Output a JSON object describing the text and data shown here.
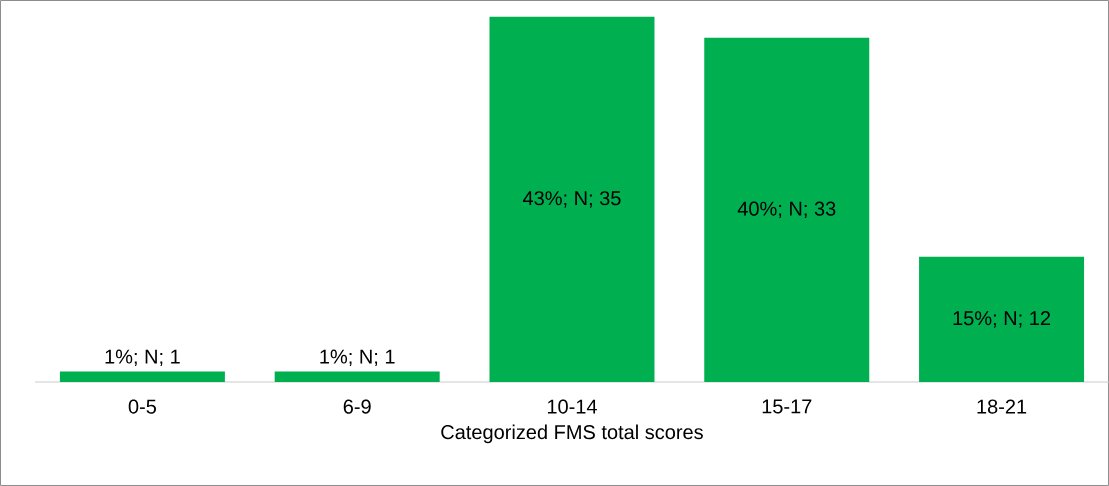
{
  "chart_data": {
    "type": "bar",
    "xlabel": "Categorized FMS total scores",
    "categories": [
      "0-5",
      "6-9",
      "10-14",
      "15-17",
      "18-21"
    ],
    "values": [
      1,
      1,
      35,
      33,
      12
    ],
    "value_labels": [
      "1%; N; 1",
      "1%; N; 1",
      "43%; N; 35",
      "40%; N; 33",
      "15%; N; 12"
    ],
    "color": "#00b050"
  }
}
